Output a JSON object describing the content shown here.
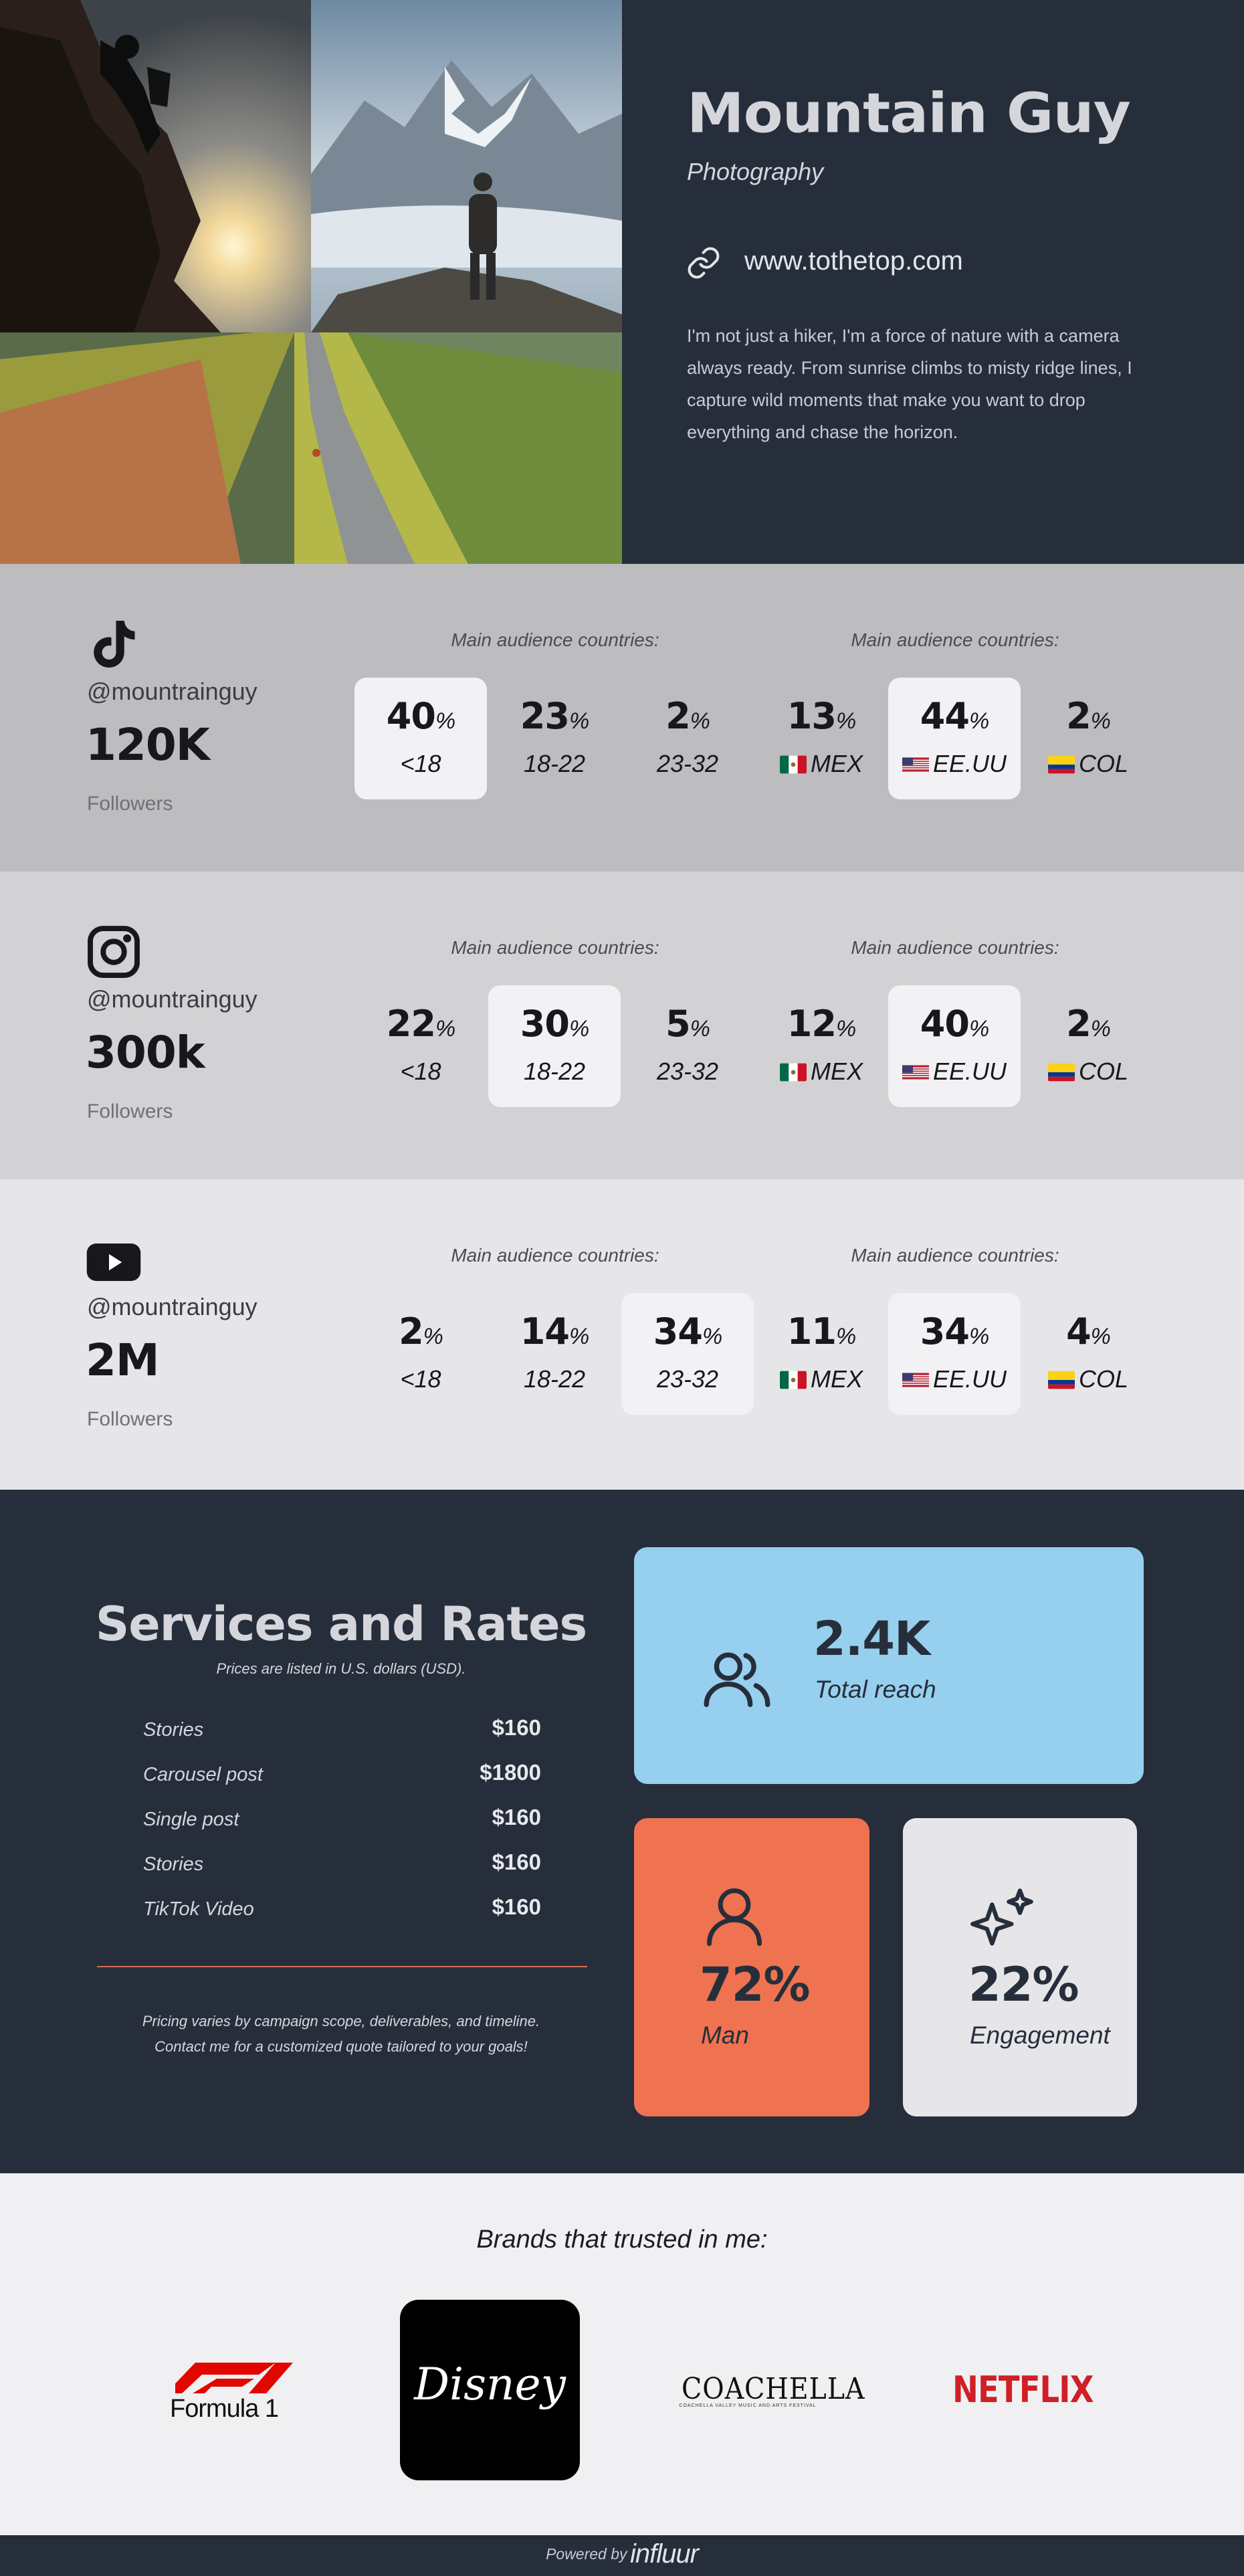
{
  "hero": {
    "name": "Mountain Guy",
    "subtitle": "Photography",
    "website": "www.tothetop.com",
    "bio": "I'm not just a hiker, I'm a force of nature with a camera always ready. From sunrise climbs to misty ridge lines, I capture wild moments that make you want to drop everything and chase the horizon."
  },
  "audience_title": "Main audience countries:",
  "platforms": {
    "tiktok": {
      "icon": "tiktok-icon",
      "handle": "@mountrainguy",
      "followers": "120K",
      "followers_label": "Followers",
      "ages": [
        {
          "value": "40",
          "unit": "%",
          "label": "<18",
          "highlight": true
        },
        {
          "value": "23",
          "unit": "%",
          "label": "18-22",
          "highlight": false
        },
        {
          "value": "2",
          "unit": "%",
          "label": "23-32",
          "highlight": false
        }
      ],
      "countries": [
        {
          "value": "13",
          "unit": "%",
          "label": "MEX",
          "flag": "mexico-flag-icon",
          "highlight": false
        },
        {
          "value": "44",
          "unit": "%",
          "label": "EE.UU",
          "flag": "usa-flag-icon",
          "highlight": true
        },
        {
          "value": "2",
          "unit": "%",
          "label": "COL",
          "flag": "colombia-flag-icon",
          "highlight": false
        }
      ]
    },
    "instagram": {
      "icon": "instagram-icon",
      "handle": "@mountrainguy",
      "followers": "300k",
      "followers_label": "Followers",
      "ages": [
        {
          "value": "22",
          "unit": "%",
          "label": "<18",
          "highlight": false
        },
        {
          "value": "30",
          "unit": "%",
          "label": "18-22",
          "highlight": true
        },
        {
          "value": "5",
          "unit": "%",
          "label": "23-32",
          "highlight": false
        }
      ],
      "countries": [
        {
          "value": "12",
          "unit": "%",
          "label": "MEX",
          "flag": "mexico-flag-icon",
          "highlight": false
        },
        {
          "value": "40",
          "unit": "%",
          "label": "EE.UU",
          "flag": "usa-flag-icon",
          "highlight": true
        },
        {
          "value": "2",
          "unit": "%",
          "label": "COL",
          "flag": "colombia-flag-icon",
          "highlight": false
        }
      ]
    },
    "youtube": {
      "icon": "youtube-icon",
      "handle": "@mountrainguy",
      "followers": "2M",
      "followers_label": "Followers",
      "ages": [
        {
          "value": "2",
          "unit": "%",
          "label": "<18",
          "highlight": false
        },
        {
          "value": "14",
          "unit": "%",
          "label": "18-22",
          "highlight": false
        },
        {
          "value": "34",
          "unit": "%",
          "label": "23-32",
          "highlight": true
        }
      ],
      "countries": [
        {
          "value": "11",
          "unit": "%",
          "label": "MEX",
          "flag": "mexico-flag-icon",
          "highlight": false
        },
        {
          "value": "34",
          "unit": "%",
          "label": "EE.UU",
          "flag": "usa-flag-icon",
          "highlight": true
        },
        {
          "value": "4",
          "unit": "%",
          "label": "COL",
          "flag": "colombia-flag-icon",
          "highlight": false
        }
      ]
    }
  },
  "services": {
    "title": "Services and Rates",
    "note": "Prices are listed in U.S. dollars (USD).",
    "rates": [
      {
        "name": "Stories",
        "price": "$160"
      },
      {
        "name": "Carousel post",
        "price": "$1800"
      },
      {
        "name": "Single post",
        "price": "$160"
      },
      {
        "name": "Stories",
        "price": "$160"
      },
      {
        "name": "TikTok Video",
        "price": "$160"
      }
    ],
    "footer_line1": "Pricing varies by campaign scope, deliverables, and timeline.",
    "footer_line2": "Contact me for a customized quote tailored to your goals!"
  },
  "metrics": {
    "reach": {
      "value": "2.4K",
      "label": "Total reach",
      "icon": "users-icon",
      "color": "#97d0ef"
    },
    "gender": {
      "value": "72%",
      "label": "Man",
      "icon": "user-icon",
      "color": "#ef7350"
    },
    "engagement": {
      "value": "22%",
      "label": "Engagement",
      "icon": "sparkles-icon",
      "color": "#e6e6e9"
    }
  },
  "brands": {
    "title": "Brands that trusted in me:",
    "items": [
      {
        "name": "Formula 1",
        "word": "Formula 1"
      },
      {
        "name": "Disney",
        "word": "Disney"
      },
      {
        "name": "Coachella",
        "word": "COACHELLA",
        "tagline": "COACHELLA VALLEY MUSIC AND ARTS FESTIVAL"
      },
      {
        "name": "Netflix",
        "word": "NETFLIX"
      }
    ]
  },
  "footer": {
    "powered": "Powered by",
    "brand": "influur"
  },
  "colors": {
    "navy": "#272e3b",
    "accent_orange": "#ef7350",
    "accent_blue": "#97d0ef",
    "netflix_red": "#d01f26"
  }
}
